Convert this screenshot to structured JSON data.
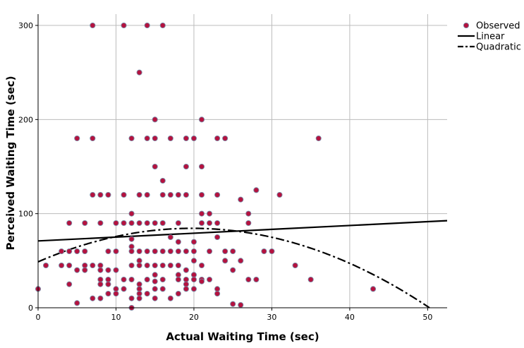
{
  "chart_data": {
    "type": "scatter",
    "xlabel": "Actual Waiting Time (sec)",
    "ylabel": "Perceived Waiting Time (sec)",
    "xlim": [
      0,
      52.5
    ],
    "ylim": [
      0,
      312
    ],
    "x_ticks": [
      0,
      10,
      20,
      30,
      40,
      50
    ],
    "y_ticks": [
      0,
      100,
      200,
      300
    ],
    "grid": true,
    "legend_position": "top-right",
    "colors": {
      "observed": "#b5123f",
      "observed_edge": "#7a8aa6",
      "line": "#000000",
      "grid": "#bcbcbc"
    },
    "legend": [
      {
        "label": "Observed",
        "kind": "marker"
      },
      {
        "label": "Linear",
        "kind": "solid"
      },
      {
        "label": "Quadratic",
        "kind": "dashdot"
      }
    ],
    "series": [
      {
        "name": "Observed",
        "points": [
          [
            0,
            20
          ],
          [
            1,
            45
          ],
          [
            3,
            45
          ],
          [
            3,
            60
          ],
          [
            4,
            90
          ],
          [
            4,
            60
          ],
          [
            4,
            45
          ],
          [
            4,
            25
          ],
          [
            5,
            180
          ],
          [
            5,
            60
          ],
          [
            5,
            40
          ],
          [
            5,
            5
          ],
          [
            6,
            90
          ],
          [
            6,
            60
          ],
          [
            6,
            45
          ],
          [
            6,
            40
          ],
          [
            7,
            300
          ],
          [
            7,
            180
          ],
          [
            7,
            120
          ],
          [
            7,
            45
          ],
          [
            7,
            10
          ],
          [
            8,
            120
          ],
          [
            8,
            90
          ],
          [
            8,
            45
          ],
          [
            8,
            40
          ],
          [
            8,
            30
          ],
          [
            8,
            25
          ],
          [
            8,
            10
          ],
          [
            9,
            120
          ],
          [
            9,
            60
          ],
          [
            9,
            40
          ],
          [
            9,
            30
          ],
          [
            9,
            25
          ],
          [
            9,
            15
          ],
          [
            10,
            90
          ],
          [
            10,
            60
          ],
          [
            10,
            40
          ],
          [
            10,
            20
          ],
          [
            10,
            15
          ],
          [
            11,
            300
          ],
          [
            11,
            120
          ],
          [
            11,
            90
          ],
          [
            11,
            30
          ],
          [
            11,
            20
          ],
          [
            12,
            180
          ],
          [
            12,
            100
          ],
          [
            12,
            90
          ],
          [
            12,
            73
          ],
          [
            12,
            65
          ],
          [
            12,
            60
          ],
          [
            12,
            45
          ],
          [
            12,
            30
          ],
          [
            12,
            10
          ],
          [
            12,
            0
          ],
          [
            13,
            250
          ],
          [
            13,
            120
          ],
          [
            13,
            90
          ],
          [
            13,
            60
          ],
          [
            13,
            50
          ],
          [
            13,
            45
          ],
          [
            13,
            25
          ],
          [
            13,
            20
          ],
          [
            13,
            15
          ],
          [
            13,
            10
          ],
          [
            14,
            300
          ],
          [
            14,
            180
          ],
          [
            14,
            120
          ],
          [
            14,
            90
          ],
          [
            14,
            60
          ],
          [
            14,
            45
          ],
          [
            14,
            30
          ],
          [
            14,
            15
          ],
          [
            15,
            200
          ],
          [
            15,
            180
          ],
          [
            15,
            150
          ],
          [
            15,
            90
          ],
          [
            15,
            60
          ],
          [
            15,
            45
          ],
          [
            15,
            35
          ],
          [
            15,
            28
          ],
          [
            15,
            20
          ],
          [
            15,
            10
          ],
          [
            16,
            300
          ],
          [
            16,
            135
          ],
          [
            16,
            120
          ],
          [
            16,
            90
          ],
          [
            16,
            60
          ],
          [
            16,
            45
          ],
          [
            16,
            30
          ],
          [
            16,
            20
          ],
          [
            17,
            180
          ],
          [
            17,
            120
          ],
          [
            17,
            75
          ],
          [
            17,
            60
          ],
          [
            17,
            45
          ],
          [
            17,
            10
          ],
          [
            18,
            120
          ],
          [
            18,
            90
          ],
          [
            18,
            70
          ],
          [
            18,
            60
          ],
          [
            18,
            45
          ],
          [
            18,
            35
          ],
          [
            18,
            30
          ],
          [
            18,
            15
          ],
          [
            19,
            180
          ],
          [
            19,
            150
          ],
          [
            19,
            120
          ],
          [
            19,
            60
          ],
          [
            19,
            40
          ],
          [
            19,
            30
          ],
          [
            19,
            25
          ],
          [
            19,
            20
          ],
          [
            20,
            180
          ],
          [
            20,
            70
          ],
          [
            20,
            60
          ],
          [
            20,
            50
          ],
          [
            20,
            35
          ],
          [
            20,
            30
          ],
          [
            20,
            20
          ],
          [
            21,
            200
          ],
          [
            21,
            150
          ],
          [
            21,
            120
          ],
          [
            21,
            100
          ],
          [
            21,
            90
          ],
          [
            21,
            45
          ],
          [
            21,
            30
          ],
          [
            21,
            28
          ],
          [
            22,
            100
          ],
          [
            22,
            90
          ],
          [
            22,
            60
          ],
          [
            22,
            30
          ],
          [
            23,
            180
          ],
          [
            23,
            120
          ],
          [
            23,
            90
          ],
          [
            23,
            75
          ],
          [
            23,
            20
          ],
          [
            23,
            15
          ],
          [
            24,
            180
          ],
          [
            24,
            60
          ],
          [
            24,
            50
          ],
          [
            25,
            60
          ],
          [
            25,
            40
          ],
          [
            25,
            4
          ],
          [
            26,
            115
          ],
          [
            26,
            50
          ],
          [
            26,
            3
          ],
          [
            27,
            100
          ],
          [
            27,
            90
          ],
          [
            27,
            30
          ],
          [
            28,
            125
          ],
          [
            28,
            30
          ],
          [
            29,
            60
          ],
          [
            30,
            60
          ],
          [
            31,
            120
          ],
          [
            33,
            45
          ],
          [
            35,
            30
          ],
          [
            36,
            180
          ],
          [
            43,
            20
          ]
        ]
      },
      {
        "name": "Linear",
        "intercept": 71,
        "slope": 0.41
      },
      {
        "name": "Quadratic",
        "a": 48.8,
        "b": 3.6,
        "c": -0.091
      }
    ]
  }
}
